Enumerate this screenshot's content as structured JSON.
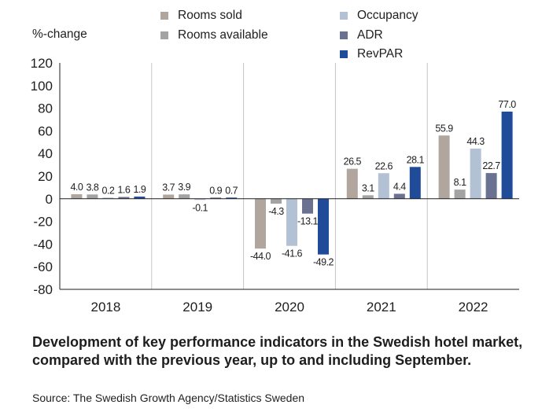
{
  "chart_data": {
    "type": "bar",
    "title": "",
    "ylabel": "%-change",
    "xlabel": "",
    "ylim": [
      -80,
      120
    ],
    "yticks": [
      120,
      100,
      80,
      60,
      40,
      20,
      0,
      -20,
      -40,
      -60,
      -80
    ],
    "categories": [
      "2018",
      "2019",
      "2020",
      "2021",
      "2022"
    ],
    "series": [
      {
        "name": "Rooms sold",
        "color": "#b0a69d",
        "values": [
          4.0,
          3.7,
          -44.0,
          26.5,
          55.9
        ],
        "labels": [
          "4.0",
          "3.7",
          "-44.0",
          "26.5",
          "55.9"
        ]
      },
      {
        "name": "Rooms available",
        "color": "#a3a3a3",
        "values": [
          3.8,
          3.9,
          -4.3,
          3.1,
          8.1
        ],
        "labels": [
          "3.8",
          "3.9",
          "-4.3",
          "3.1",
          "8.1"
        ]
      },
      {
        "name": "Occupancy",
        "color": "#b3c1d4",
        "values": [
          0.2,
          -0.1,
          -41.6,
          22.6,
          44.3
        ],
        "labels": [
          "0.2",
          "-0.1",
          "-41.6",
          "22.6",
          "44.3"
        ]
      },
      {
        "name": "ADR",
        "color": "#6a7191",
        "values": [
          1.6,
          0.9,
          -13.1,
          4.4,
          22.7
        ],
        "labels": [
          "1.6",
          "0.9",
          "-13.1",
          "4.4",
          "22.7"
        ]
      },
      {
        "name": "RevPAR",
        "color": "#1f4b99",
        "values": [
          1.9,
          0.7,
          -49.2,
          28.1,
          77.0
        ],
        "labels": [
          "1.9",
          "0.7",
          "-49.2",
          "28.1",
          "77.0"
        ]
      }
    ],
    "legend_position": "top",
    "grid": false
  },
  "caption": "Development of key performance indicators in the Swedish hotel market, compared with the previous year, up to and including September.",
  "source": "Source: The Swedish Growth Agency/Statistics Sweden"
}
